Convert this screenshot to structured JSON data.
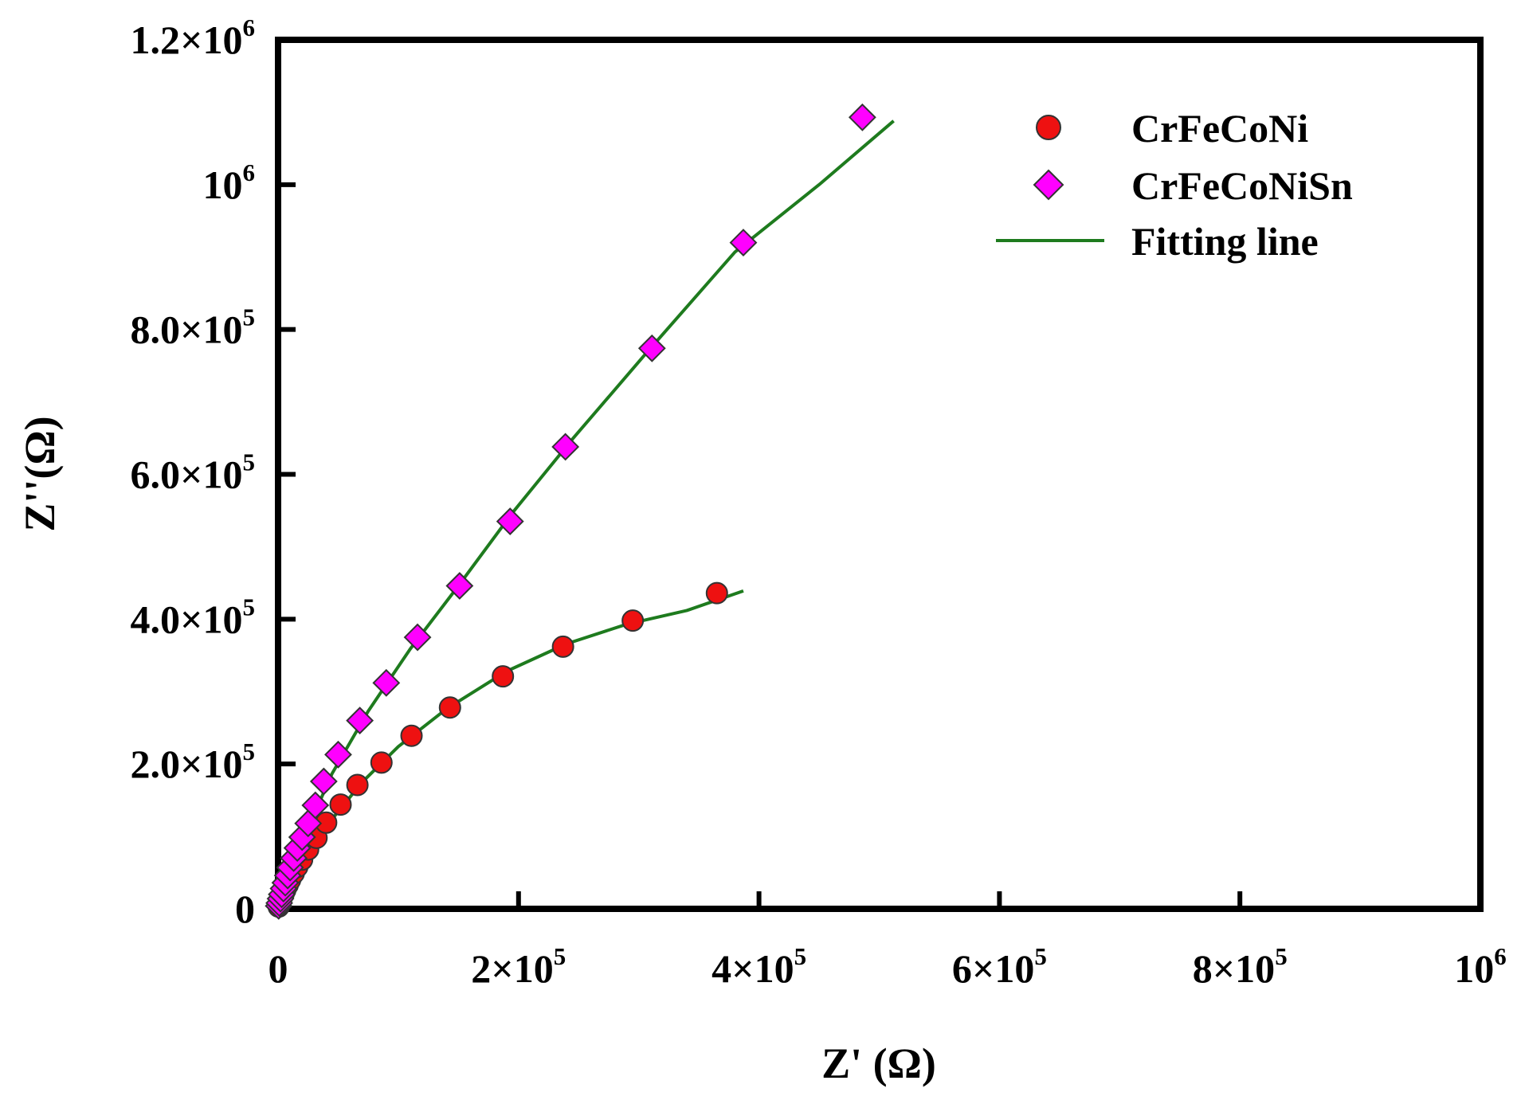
{
  "chart_data": {
    "type": "scatter",
    "title": "",
    "xlabel": "Z' (Ω)",
    "ylabel": "Z''(Ω)",
    "xlim": [
      0,
      1000000
    ],
    "ylim": [
      0,
      1200000
    ],
    "x_ticks": [
      {
        "value": 0,
        "mantissa": "0",
        "exp": ""
      },
      {
        "value": 200000,
        "mantissa": "2×10",
        "exp": "5"
      },
      {
        "value": 400000,
        "mantissa": "4×10",
        "exp": "5"
      },
      {
        "value": 600000,
        "mantissa": "6×10",
        "exp": "5"
      },
      {
        "value": 800000,
        "mantissa": "8×10",
        "exp": "5"
      },
      {
        "value": 1000000,
        "mantissa": "10",
        "exp": "6"
      }
    ],
    "y_ticks": [
      {
        "value": 0,
        "mantissa": "0",
        "exp": ""
      },
      {
        "value": 200000,
        "mantissa": "2.0×10",
        "exp": "5"
      },
      {
        "value": 400000,
        "mantissa": "4.0×10",
        "exp": "5"
      },
      {
        "value": 600000,
        "mantissa": "6.0×10",
        "exp": "5"
      },
      {
        "value": 800000,
        "mantissa": "8.0×10",
        "exp": "5"
      },
      {
        "value": 1000000,
        "mantissa": "10",
        "exp": "6"
      },
      {
        "value": 1200000,
        "mantissa": "1.2×10",
        "exp": "6"
      }
    ],
    "legend_position": "top-right",
    "colors": {
      "circle_fill": "#ee1111",
      "diamond_fill": "#ff00ff",
      "fit_line": "#1e7b1e",
      "marker_edge": "#333333",
      "axis": "#000000"
    },
    "series": [
      {
        "name": "CrFeCoNi",
        "marker": "circle",
        "x": [
          500,
          1000,
          2000,
          3000,
          4500,
          6000,
          8000,
          10000,
          13000,
          16000,
          20000,
          25000,
          32000,
          40000,
          52000,
          66000,
          86000,
          111000,
          143000,
          187000,
          237000,
          295000,
          365000
        ],
        "y": [
          3000,
          6000,
          10000,
          15000,
          20000,
          26000,
          33000,
          40000,
          49000,
          58000,
          68000,
          82000,
          98000,
          119000,
          144000,
          171000,
          202000,
          239000,
          278000,
          321000,
          362000,
          398000,
          436000
        ]
      },
      {
        "name": "CrFeCoNiSn",
        "marker": "diamond",
        "x": [
          500,
          1000,
          2000,
          3000,
          4500,
          6000,
          8000,
          10000,
          13000,
          16000,
          20000,
          25000,
          31000,
          38000,
          50000,
          68000,
          90000,
          116000,
          151000,
          193000,
          239000,
          311000,
          387000,
          486000
        ],
        "y": [
          4000,
          8000,
          14000,
          20000,
          28000,
          36000,
          46000,
          57000,
          70000,
          84000,
          99000,
          118000,
          143000,
          176000,
          213000,
          260000,
          312000,
          375000,
          446000,
          535000,
          638000,
          774000,
          920000,
          1093000
        ]
      },
      {
        "name": "Fitting line",
        "marker": "line",
        "fits": [
          {
            "x": [
              0,
              10000,
              25000,
              45000,
              70000,
              100000,
              140000,
              190000,
              240000,
              290000,
              340000,
              387000
            ],
            "y": [
              0,
              30000,
              75000,
              124000,
              175000,
              224000,
              276000,
              328000,
              366000,
              393000,
              412000,
              439000
            ]
          },
          {
            "x": [
              0,
              10000,
              25000,
              45000,
              75000,
              110000,
              150000,
              195000,
              245000,
              305000,
              380000,
              450000,
              512000
            ],
            "y": [
              0,
              47000,
              112000,
              187000,
              273000,
              359000,
              446000,
              547000,
              649000,
              765000,
              907000,
              1000000,
              1088000
            ]
          }
        ]
      }
    ]
  }
}
